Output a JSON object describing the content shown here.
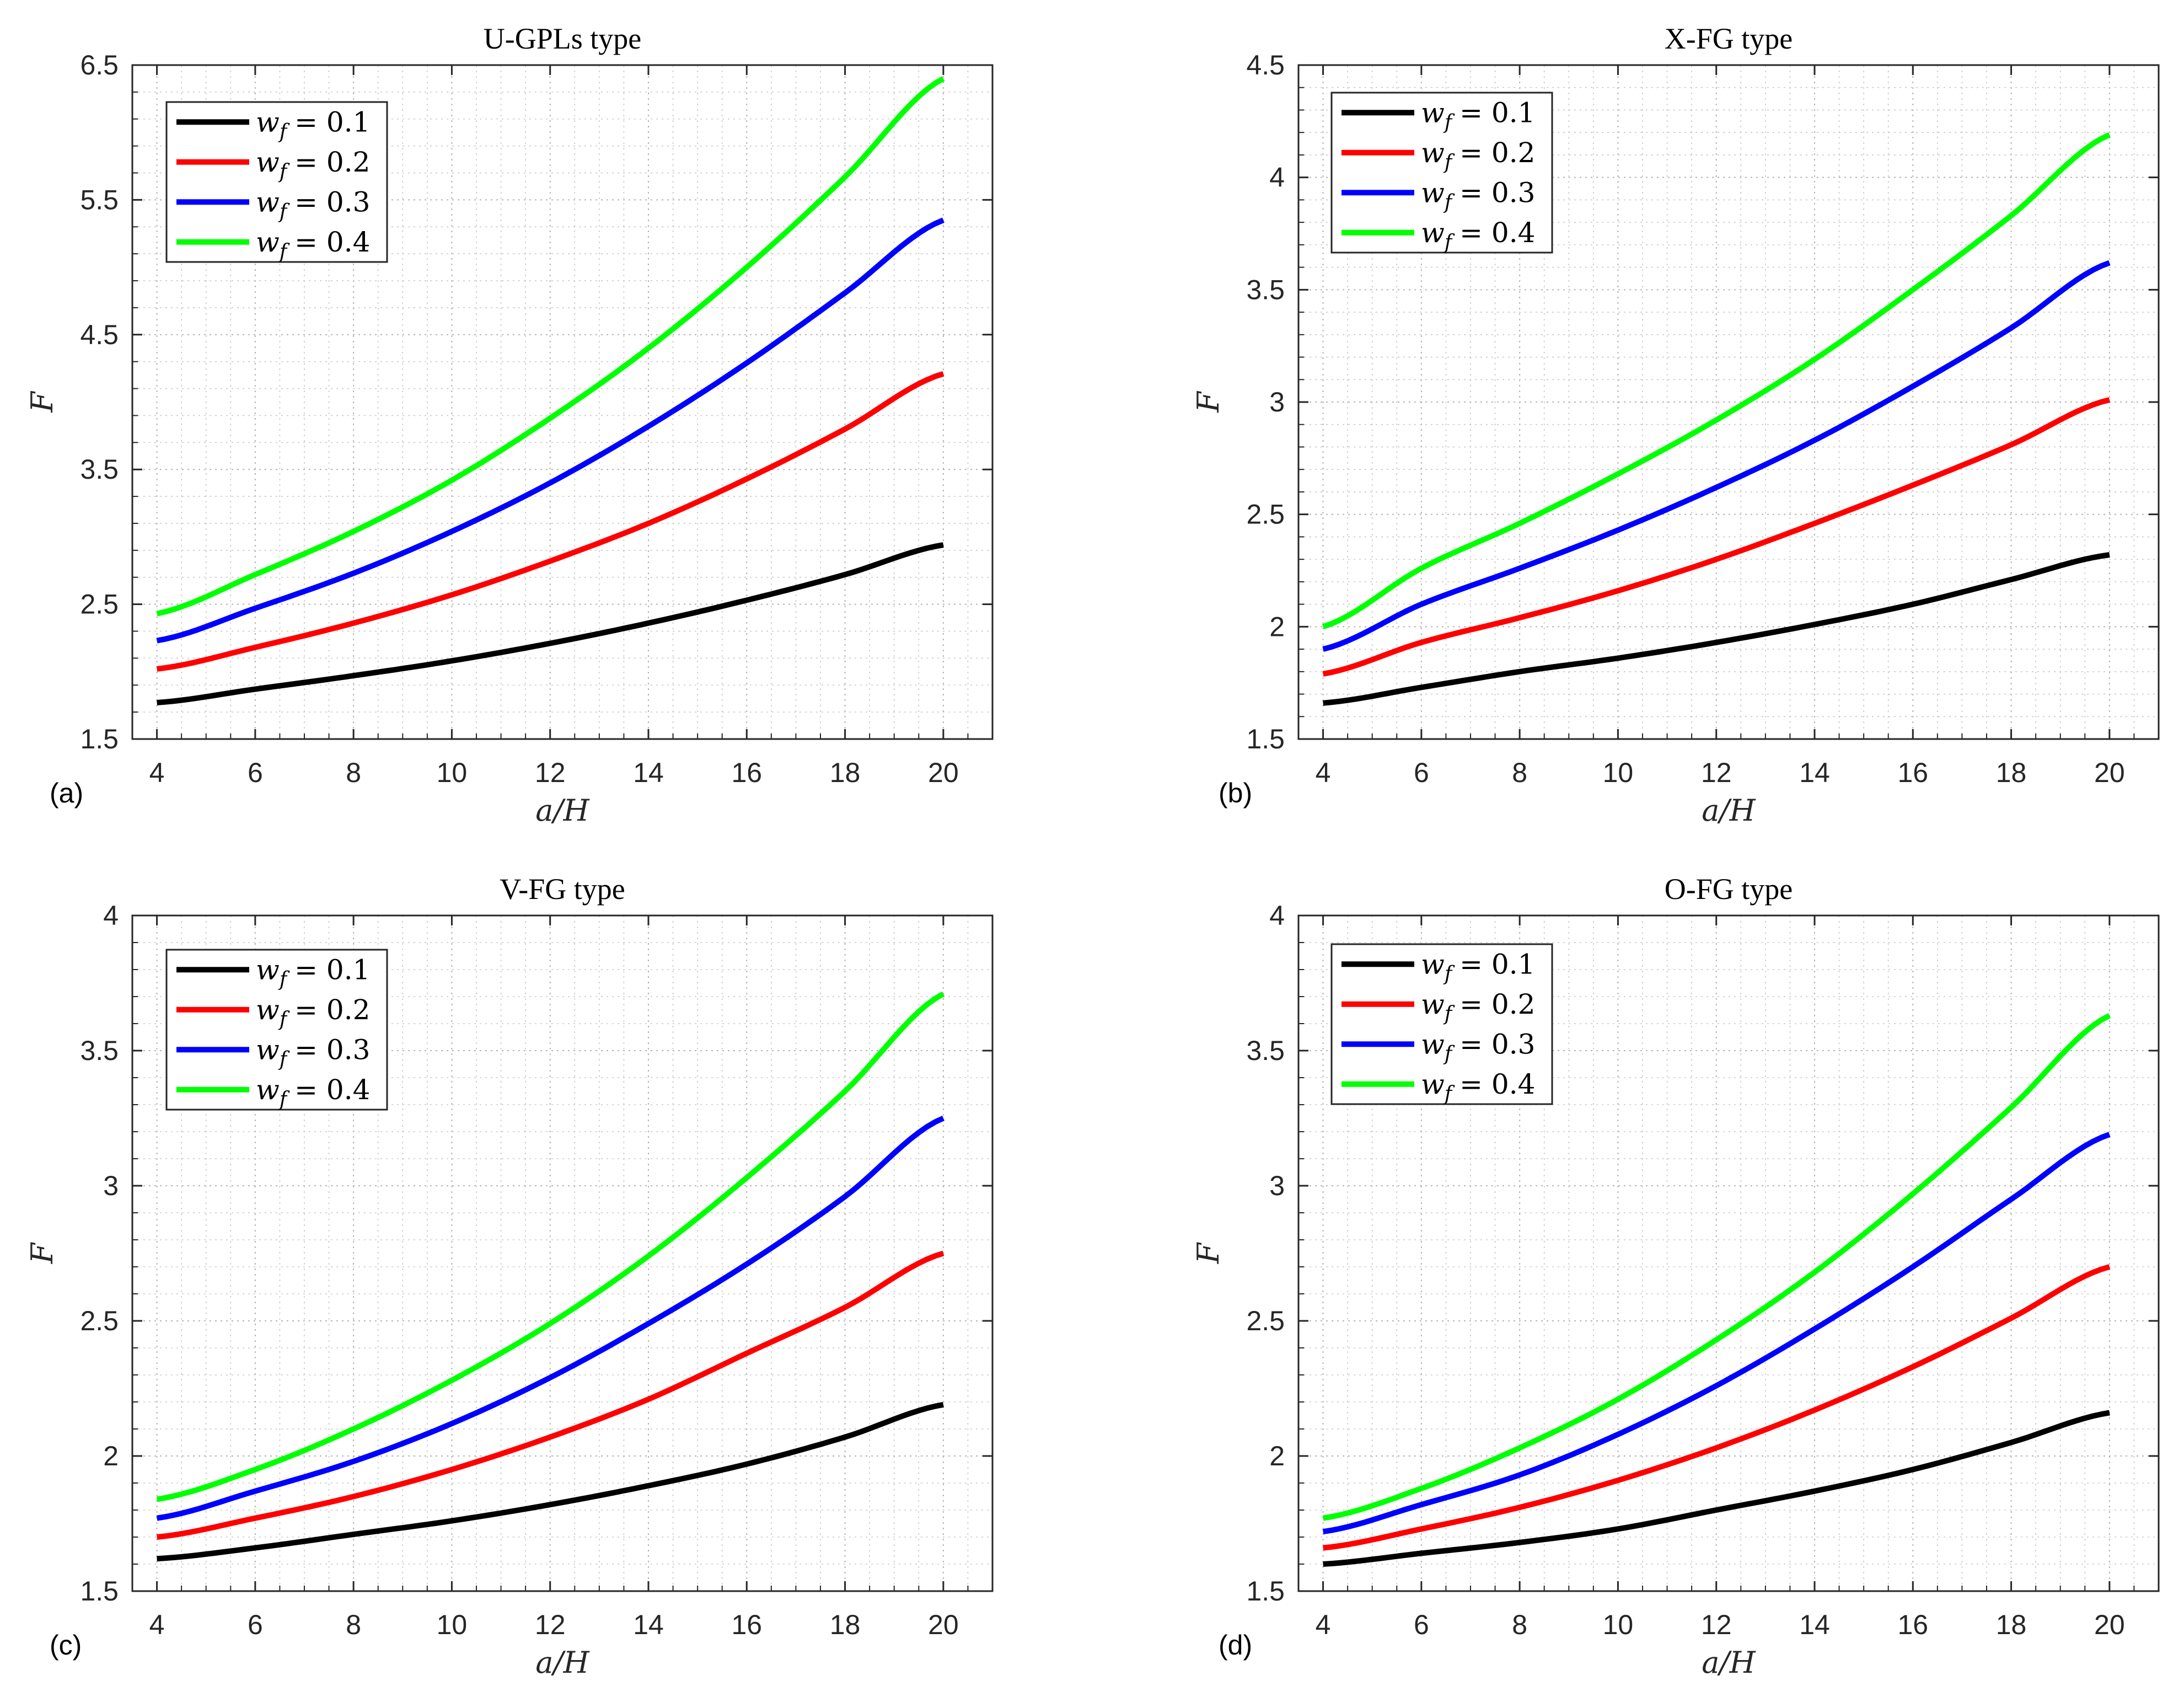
{
  "chart_data": [
    {
      "type": "line",
      "panel": "(a)",
      "title": "U-GPLs type",
      "xlabel": "a/H",
      "ylabel": "F",
      "xlim": [
        3.5,
        21
      ],
      "ylim": [
        1.5,
        6.5
      ],
      "xticks": [
        4,
        6,
        8,
        10,
        12,
        14,
        16,
        18,
        20
      ],
      "yticks": [
        1.5,
        2.5,
        3.5,
        4.5,
        5.5,
        6.5
      ],
      "grid": "on",
      "legend_location": "top-left",
      "x": [
        4,
        6,
        8,
        10,
        12,
        14,
        16,
        18,
        20
      ],
      "series": [
        {
          "name": "w_f = 0.1",
          "label_var": "w",
          "label_sub": "f",
          "label_value": "= 0.1",
          "color": "#000000",
          "values": [
            1.77,
            1.87,
            1.97,
            2.08,
            2.21,
            2.36,
            2.53,
            2.72,
            2.94
          ]
        },
        {
          "name": "w_f = 0.2",
          "label_var": "w",
          "label_sub": "f",
          "label_value": "= 0.2",
          "color": "#ff0000",
          "values": [
            2.02,
            2.18,
            2.36,
            2.57,
            2.82,
            3.1,
            3.43,
            3.8,
            4.21
          ]
        },
        {
          "name": "w_f = 0.3",
          "label_var": "w",
          "label_sub": "f",
          "label_value": "= 0.3",
          "color": "#0000ff",
          "values": [
            2.23,
            2.47,
            2.73,
            3.04,
            3.4,
            3.82,
            4.29,
            4.81,
            5.35
          ]
        },
        {
          "name": "w_f = 0.4",
          "label_var": "w",
          "label_sub": "f",
          "label_value": "= 0.4",
          "color": "#00ff00",
          "values": [
            2.43,
            2.72,
            3.04,
            3.42,
            3.88,
            4.4,
            5.0,
            5.67,
            6.4
          ]
        }
      ]
    },
    {
      "type": "line",
      "panel": "(b)",
      "title": "X-FG type",
      "xlabel": "a/H",
      "ylabel": "F",
      "xlim": [
        3.5,
        21
      ],
      "ylim": [
        1.5,
        4.5
      ],
      "xticks": [
        4,
        6,
        8,
        10,
        12,
        14,
        16,
        18,
        20
      ],
      "yticks": [
        1.5,
        2,
        2.5,
        3,
        3.5,
        4,
        4.5
      ],
      "grid": "on",
      "legend_location": "top-left",
      "x": [
        4,
        6,
        8,
        10,
        12,
        14,
        16,
        18,
        20
      ],
      "series": [
        {
          "name": "w_f = 0.1",
          "label_var": "w",
          "label_sub": "f",
          "label_value": "= 0.1",
          "color": "#000000",
          "values": [
            1.66,
            1.73,
            1.8,
            1.86,
            1.93,
            2.01,
            2.1,
            2.21,
            2.32
          ]
        },
        {
          "name": "w_f = 0.2",
          "label_var": "w",
          "label_sub": "f",
          "label_value": "= 0.2",
          "color": "#ff0000",
          "values": [
            1.79,
            1.93,
            2.04,
            2.16,
            2.3,
            2.46,
            2.63,
            2.81,
            3.01
          ]
        },
        {
          "name": "w_f = 0.3",
          "label_var": "w",
          "label_sub": "f",
          "label_value": "= 0.3",
          "color": "#0000ff",
          "values": [
            1.9,
            2.1,
            2.26,
            2.43,
            2.62,
            2.83,
            3.07,
            3.33,
            3.62
          ]
        },
        {
          "name": "w_f = 0.4",
          "label_var": "w",
          "label_sub": "f",
          "label_value": "= 0.4",
          "color": "#00ff00",
          "values": [
            2.0,
            2.26,
            2.46,
            2.68,
            2.92,
            3.19,
            3.5,
            3.83,
            4.19
          ]
        }
      ]
    },
    {
      "type": "line",
      "panel": "(c)",
      "title": "V-FG type",
      "xlabel": "a/H",
      "ylabel": "F",
      "xlim": [
        3.5,
        21
      ],
      "ylim": [
        1.5,
        4
      ],
      "xticks": [
        4,
        6,
        8,
        10,
        12,
        14,
        16,
        18,
        20
      ],
      "yticks": [
        1.5,
        2,
        2.5,
        3,
        3.5,
        4
      ],
      "grid": "on",
      "legend_location": "top-left",
      "x": [
        4,
        6,
        8,
        10,
        12,
        14,
        16,
        18,
        20
      ],
      "series": [
        {
          "name": "w_f = 0.1",
          "label_var": "w",
          "label_sub": "f",
          "label_value": "= 0.1",
          "color": "#000000",
          "values": [
            1.62,
            1.66,
            1.71,
            1.76,
            1.82,
            1.89,
            1.97,
            2.07,
            2.19
          ]
        },
        {
          "name": "w_f = 0.2",
          "label_var": "w",
          "label_sub": "f",
          "label_value": "= 0.2",
          "color": "#ff0000",
          "values": [
            1.7,
            1.77,
            1.85,
            1.95,
            2.07,
            2.21,
            2.38,
            2.55,
            2.75
          ]
        },
        {
          "name": "w_f = 0.3",
          "label_var": "w",
          "label_sub": "f",
          "label_value": "= 0.3",
          "color": "#0000ff",
          "values": [
            1.77,
            1.87,
            1.98,
            2.12,
            2.29,
            2.49,
            2.71,
            2.96,
            3.25
          ]
        },
        {
          "name": "w_f = 0.4",
          "label_var": "w",
          "label_sub": "f",
          "label_value": "= 0.4",
          "color": "#00ff00",
          "values": [
            1.84,
            1.95,
            2.1,
            2.28,
            2.49,
            2.74,
            3.03,
            3.35,
            3.71
          ]
        }
      ]
    },
    {
      "type": "line",
      "panel": "(d)",
      "title": "O-FG type",
      "xlabel": "a/H",
      "ylabel": "F",
      "xlim": [
        3.5,
        21
      ],
      "ylim": [
        1.5,
        4
      ],
      "xticks": [
        4,
        6,
        8,
        10,
        12,
        14,
        16,
        18,
        20
      ],
      "yticks": [
        1.5,
        2,
        2.5,
        3,
        3.5,
        4
      ],
      "grid": "on",
      "legend_location": "top-left",
      "x": [
        4,
        6,
        8,
        10,
        12,
        14,
        16,
        18,
        20
      ],
      "series": [
        {
          "name": "w_f = 0.1",
          "label_var": "w",
          "label_sub": "f",
          "label_value": "= 0.1",
          "color": "#000000",
          "values": [
            1.6,
            1.64,
            1.68,
            1.73,
            1.8,
            1.87,
            1.95,
            2.05,
            2.16
          ]
        },
        {
          "name": "w_f = 0.2",
          "label_var": "w",
          "label_sub": "f",
          "label_value": "= 0.2",
          "color": "#ff0000",
          "values": [
            1.66,
            1.73,
            1.81,
            1.91,
            2.03,
            2.17,
            2.33,
            2.51,
            2.7
          ]
        },
        {
          "name": "w_f = 0.3",
          "label_var": "w",
          "label_sub": "f",
          "label_value": "= 0.3",
          "color": "#0000ff",
          "values": [
            1.72,
            1.82,
            1.93,
            2.08,
            2.26,
            2.47,
            2.7,
            2.95,
            3.19
          ]
        },
        {
          "name": "w_f = 0.4",
          "label_var": "w",
          "label_sub": "f",
          "label_value": "= 0.4",
          "color": "#00ff00",
          "values": [
            1.77,
            1.88,
            2.03,
            2.21,
            2.43,
            2.68,
            2.97,
            3.29,
            3.63
          ]
        }
      ]
    }
  ]
}
